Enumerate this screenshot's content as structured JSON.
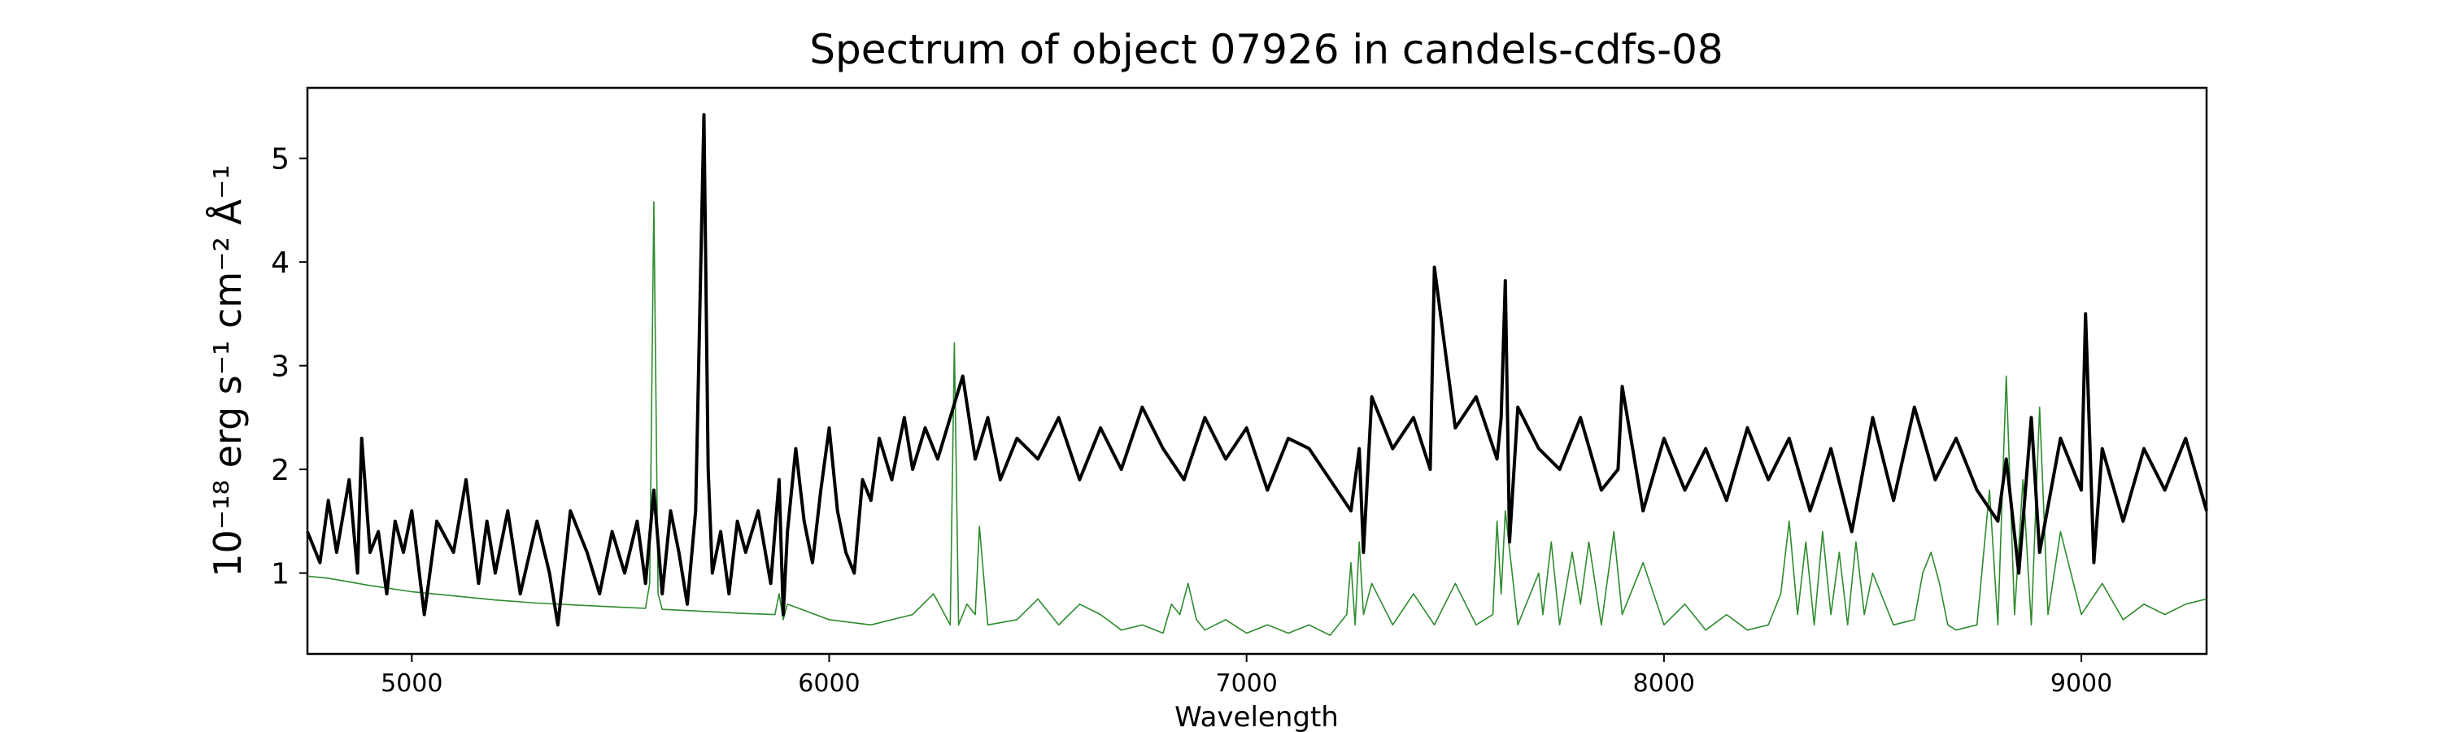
{
  "chart_data": {
    "type": "line",
    "title": "Spectrum of object 07926 in candels-cdfs-08",
    "xlabel": "Wavelength",
    "ylabel": "10⁻¹⁸ erg s⁻¹ cm⁻² Å⁻¹",
    "xlim": [
      4750,
      9300
    ],
    "ylim": [
      0.22,
      5.68
    ],
    "xticks": [
      5000,
      6000,
      7000,
      8000,
      9000
    ],
    "yticks": [
      1,
      2,
      3,
      4,
      5
    ],
    "grid": false,
    "series": [
      {
        "color": "#000000",
        "x": [
          4750,
          4780,
          4800,
          4820,
          4850,
          4870,
          4880,
          4900,
          4920,
          4940,
          4960,
          4980,
          5000,
          5030,
          5060,
          5100,
          5130,
          5160,
          5180,
          5200,
          5230,
          5260,
          5300,
          5330,
          5350,
          5380,
          5420,
          5450,
          5480,
          5510,
          5540,
          5560,
          5580,
          5600,
          5620,
          5640,
          5660,
          5680,
          5700,
          5710,
          5720,
          5740,
          5760,
          5780,
          5800,
          5830,
          5860,
          5880,
          5890,
          5900,
          5920,
          5940,
          5960,
          5980,
          6000,
          6020,
          6040,
          6060,
          6080,
          6100,
          6120,
          6150,
          6180,
          6200,
          6230,
          6260,
          6290,
          6320,
          6350,
          6380,
          6410,
          6450,
          6500,
          6550,
          6600,
          6650,
          6700,
          6750,
          6800,
          6850,
          6900,
          6950,
          7000,
          7050,
          7100,
          7150,
          7200,
          7250,
          7270,
          7280,
          7300,
          7350,
          7400,
          7440,
          7450,
          7500,
          7550,
          7600,
          7610,
          7620,
          7630,
          7650,
          7700,
          7750,
          7800,
          7850,
          7890,
          7900,
          7950,
          8000,
          8050,
          8100,
          8150,
          8200,
          8250,
          8300,
          8350,
          8400,
          8450,
          8500,
          8550,
          8600,
          8650,
          8700,
          8750,
          8800,
          8820,
          8850,
          8880,
          8900,
          8950,
          9000,
          9010,
          9030,
          9050,
          9100,
          9150,
          9200,
          9250,
          9300
        ],
        "values": [
          1.4,
          1.1,
          1.7,
          1.2,
          1.9,
          1.0,
          2.3,
          1.2,
          1.4,
          0.8,
          1.5,
          1.2,
          1.6,
          0.6,
          1.5,
          1.2,
          1.9,
          0.9,
          1.5,
          1.0,
          1.6,
          0.8,
          1.5,
          1.0,
          0.5,
          1.6,
          1.2,
          0.8,
          1.4,
          1.0,
          1.5,
          0.9,
          1.8,
          0.8,
          1.6,
          1.2,
          0.7,
          1.6,
          5.42,
          2.0,
          1.0,
          1.4,
          0.8,
          1.5,
          1.2,
          1.6,
          0.9,
          1.9,
          0.6,
          1.4,
          2.2,
          1.5,
          1.1,
          1.8,
          2.4,
          1.6,
          1.2,
          1.0,
          1.9,
          1.7,
          2.3,
          1.9,
          2.5,
          2.0,
          2.4,
          2.1,
          2.5,
          2.9,
          2.1,
          2.5,
          1.9,
          2.3,
          2.1,
          2.5,
          1.9,
          2.4,
          2.0,
          2.6,
          2.2,
          1.9,
          2.5,
          2.1,
          2.4,
          1.8,
          2.3,
          2.2,
          1.9,
          1.6,
          2.2,
          1.2,
          2.7,
          2.2,
          2.5,
          2.0,
          3.95,
          2.4,
          2.7,
          2.1,
          2.5,
          3.82,
          1.3,
          2.6,
          2.2,
          2.0,
          2.5,
          1.8,
          2.0,
          2.8,
          1.6,
          2.3,
          1.8,
          2.2,
          1.7,
          2.4,
          1.9,
          2.3,
          1.6,
          2.2,
          1.4,
          2.5,
          1.7,
          2.6,
          1.9,
          2.3,
          1.8,
          1.5,
          2.1,
          1.0,
          2.5,
          1.2,
          2.3,
          1.8,
          3.5,
          1.1,
          2.2,
          1.5,
          2.2,
          1.8,
          2.3,
          1.6
        ]
      },
      {
        "color": "#2e8b2e",
        "x": [
          4750,
          4800,
          4900,
          5000,
          5100,
          5200,
          5300,
          5400,
          5500,
          5560,
          5570,
          5580,
          5590,
          5600,
          5700,
          5800,
          5870,
          5880,
          5890,
          5900,
          6000,
          6100,
          6200,
          6250,
          6290,
          6300,
          6310,
          6330,
          6350,
          6360,
          6380,
          6450,
          6500,
          6550,
          6600,
          6650,
          6700,
          6750,
          6800,
          6820,
          6840,
          6860,
          6880,
          6900,
          6950,
          7000,
          7050,
          7100,
          7150,
          7200,
          7240,
          7250,
          7260,
          7270,
          7280,
          7300,
          7350,
          7400,
          7450,
          7500,
          7550,
          7590,
          7600,
          7610,
          7620,
          7650,
          7700,
          7710,
          7730,
          7750,
          7780,
          7800,
          7820,
          7850,
          7880,
          7900,
          7950,
          8000,
          8050,
          8100,
          8150,
          8200,
          8250,
          8280,
          8300,
          8320,
          8340,
          8360,
          8380,
          8400,
          8420,
          8440,
          8460,
          8480,
          8500,
          8550,
          8600,
          8620,
          8640,
          8660,
          8680,
          8700,
          8750,
          8780,
          8800,
          8820,
          8840,
          8860,
          8880,
          8900,
          8920,
          8950,
          9000,
          9050,
          9100,
          9150,
          9200,
          9250,
          9300
        ],
        "values": [
          0.97,
          0.95,
          0.88,
          0.82,
          0.78,
          0.74,
          0.71,
          0.69,
          0.67,
          0.66,
          0.9,
          4.58,
          0.8,
          0.65,
          0.63,
          0.61,
          0.6,
          0.8,
          0.55,
          0.7,
          0.55,
          0.5,
          0.6,
          0.8,
          0.5,
          3.22,
          0.5,
          0.7,
          0.6,
          1.45,
          0.5,
          0.55,
          0.75,
          0.5,
          0.7,
          0.6,
          0.45,
          0.5,
          0.42,
          0.7,
          0.6,
          0.9,
          0.55,
          0.45,
          0.55,
          0.42,
          0.5,
          0.42,
          0.5,
          0.4,
          0.6,
          1.1,
          0.5,
          1.3,
          0.6,
          0.9,
          0.5,
          0.8,
          0.5,
          0.9,
          0.5,
          0.6,
          1.5,
          0.8,
          1.6,
          0.5,
          1.0,
          0.6,
          1.3,
          0.5,
          1.2,
          0.7,
          1.3,
          0.5,
          1.4,
          0.6,
          1.1,
          0.5,
          0.7,
          0.45,
          0.6,
          0.45,
          0.5,
          0.8,
          1.5,
          0.6,
          1.3,
          0.5,
          1.4,
          0.6,
          1.2,
          0.5,
          1.3,
          0.6,
          1.0,
          0.5,
          0.55,
          1.0,
          1.2,
          0.9,
          0.5,
          0.45,
          0.5,
          1.8,
          0.5,
          2.9,
          0.6,
          1.9,
          0.5,
          2.6,
          0.6,
          1.4,
          0.6,
          0.9,
          0.55,
          0.7,
          0.6,
          0.7,
          0.75
        ]
      }
    ]
  }
}
